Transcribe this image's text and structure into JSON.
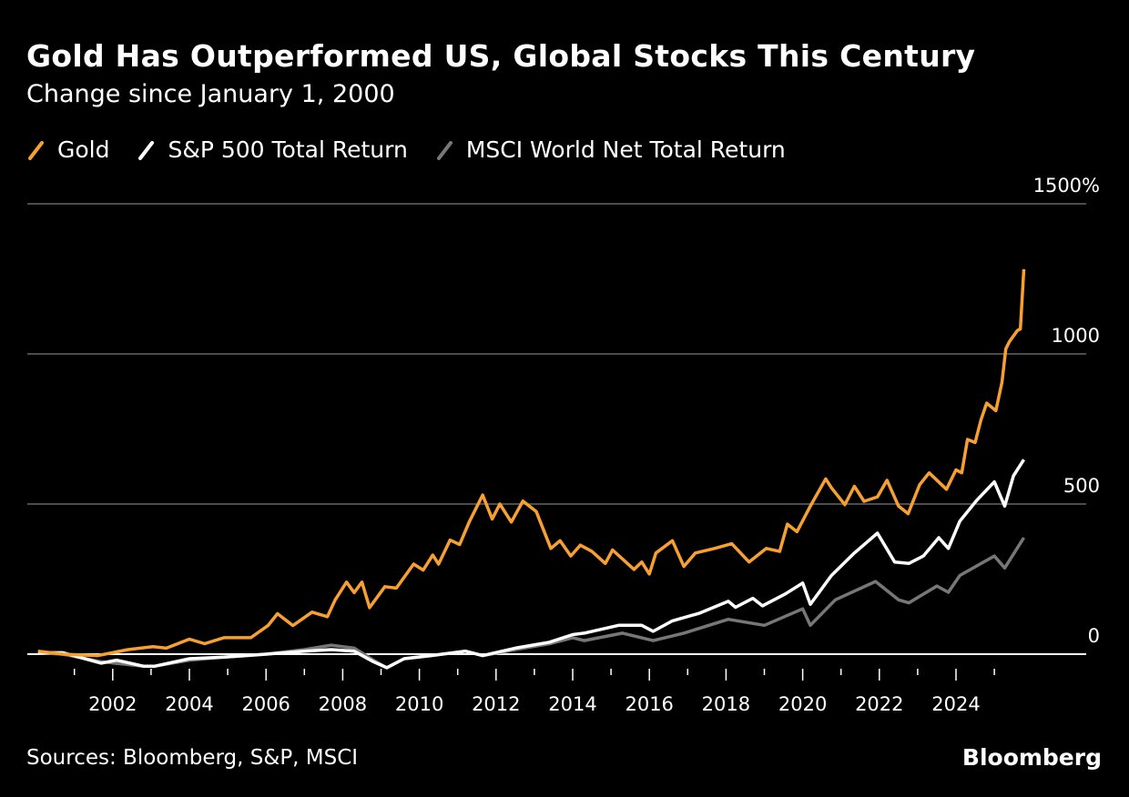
{
  "title": "Gold Has Outperformed US, Global Stocks This Century",
  "subtitle": "Change since January 1, 2000",
  "source": "Sources: Bloomberg, S&P, MSCI",
  "logo": "Bloomberg",
  "chart_data": {
    "type": "line",
    "title": "Gold Has Outperformed US, Global Stocks This Century",
    "subtitle": "Change since January 1, 2000",
    "xlabel": "",
    "ylabel": "",
    "xlim": [
      2000,
      2025.8
    ],
    "ylim": [
      0,
      1500
    ],
    "y_unit": "%",
    "y_ticks": [
      0,
      500,
      1000,
      1500
    ],
    "y_tick_labels": [
      "0",
      "500",
      "1000",
      "1500%"
    ],
    "x_ticks": [
      2002,
      2004,
      2006,
      2008,
      2010,
      2012,
      2014,
      2016,
      2018,
      2020,
      2022,
      2024
    ],
    "x_tick_labels": [
      "2002",
      "2004",
      "2006",
      "2008",
      "2010",
      "2012",
      "2014",
      "2016",
      "2018",
      "2020",
      "2022",
      "2024"
    ],
    "grid": true,
    "legend_position": "top-left",
    "series": [
      {
        "name": "Gold",
        "color": "#f7a031",
        "x": [
          2000.05,
          2000.7,
          2001.6,
          2002.4,
          2003.05,
          2003.4,
          2004.0,
          2004.4,
          2004.9,
          2005.6,
          2006.05,
          2006.3,
          2006.7,
          2007.2,
          2007.6,
          2007.8,
          2008.1,
          2008.3,
          2008.5,
          2008.7,
          2009.1,
          2009.4,
          2009.85,
          2010.1,
          2010.35,
          2010.5,
          2010.8,
          2011.05,
          2011.3,
          2011.65,
          2011.9,
          2012.1,
          2012.4,
          2012.7,
          2013.05,
          2013.43,
          2013.67,
          2013.95,
          2014.2,
          2014.5,
          2014.85,
          2015.04,
          2015.6,
          2015.8,
          2016.0,
          2016.17,
          2016.6,
          2016.9,
          2017.2,
          2017.7,
          2018.15,
          2018.6,
          2019.05,
          2019.4,
          2019.6,
          2019.85,
          2020.2,
          2020.6,
          2020.75,
          2021.1,
          2021.35,
          2021.6,
          2021.95,
          2022.2,
          2022.5,
          2022.75,
          2023.05,
          2023.3,
          2023.75,
          2024.0,
          2024.15,
          2024.3,
          2024.5,
          2024.65,
          2024.8,
          2025.04,
          2025.2,
          2025.3,
          2025.4,
          2025.6,
          2025.68,
          2025.77
        ],
        "y": [
          10,
          0,
          -5,
          15,
          25,
          20,
          50,
          35,
          55,
          55,
          95,
          135,
          95,
          140,
          125,
          180,
          240,
          205,
          240,
          155,
          225,
          220,
          300,
          280,
          330,
          300,
          380,
          365,
          440,
          530,
          450,
          500,
          440,
          510,
          475,
          352,
          378,
          327,
          363,
          342,
          302,
          347,
          282,
          307,
          267,
          337,
          378,
          292,
          337,
          352,
          368,
          307,
          352,
          342,
          433,
          408,
          493,
          584,
          554,
          498,
          559,
          509,
          524,
          579,
          493,
          468,
          564,
          604,
          549,
          614,
          604,
          715,
          705,
          780,
          836,
          811,
          906,
          1017,
          1042,
          1078,
          1083,
          1282
        ]
      },
      {
        "name": "S&P 500 Total Return",
        "color": "#ffffff",
        "x": [
          2000.05,
          2000.7,
          2001.7,
          2002.1,
          2002.8,
          2003.1,
          2004.0,
          2004.9,
          2006.0,
          2007.0,
          2007.7,
          2008.3,
          2008.8,
          2009.15,
          2009.6,
          2010.3,
          2011.2,
          2011.65,
          2012.5,
          2013.4,
          2014.0,
          2014.3,
          2015.2,
          2015.8,
          2016.1,
          2016.6,
          2017.3,
          2018.06,
          2018.25,
          2018.7,
          2018.95,
          2019.55,
          2020.0,
          2020.2,
          2020.75,
          2021.35,
          2021.95,
          2022.4,
          2022.77,
          2023.15,
          2023.55,
          2023.8,
          2024.1,
          2024.55,
          2025.0,
          2025.27,
          2025.5,
          2025.77
        ],
        "y": [
          5,
          5,
          -30,
          -20,
          -40,
          -40,
          -15,
          -10,
          0,
          10,
          15,
          10,
          -25,
          -45,
          -15,
          -5,
          10,
          -5,
          20,
          40,
          65,
          70,
          96,
          96,
          76,
          111,
          136,
          176,
          156,
          186,
          161,
          201,
          237,
          166,
          262,
          337,
          403,
          307,
          302,
          327,
          388,
          352,
          443,
          514,
          574,
          493,
          594,
          648
        ]
      },
      {
        "name": "MSCI World Net Total Return",
        "color": "#777777",
        "x": [
          2000.05,
          2000.7,
          2001.7,
          2002.8,
          2003.1,
          2004.0,
          2004.9,
          2006.0,
          2007.0,
          2007.7,
          2008.3,
          2008.8,
          2009.15,
          2009.6,
          2010.3,
          2011.2,
          2011.65,
          2012.5,
          2013.4,
          2014.0,
          2014.3,
          2015.3,
          2016.1,
          2016.9,
          2018.06,
          2019.0,
          2020.0,
          2020.2,
          2020.85,
          2021.9,
          2022.5,
          2022.77,
          2023.5,
          2023.8,
          2024.1,
          2025.0,
          2025.27,
          2025.77
        ],
        "y": [
          5,
          0,
          -25,
          -40,
          -40,
          -20,
          -10,
          0,
          15,
          30,
          20,
          -20,
          -45,
          -15,
          -5,
          10,
          -5,
          15,
          35,
          55,
          45,
          70,
          45,
          70,
          116,
          96,
          151,
          96,
          181,
          242,
          181,
          171,
          227,
          206,
          262,
          327,
          287,
          388
        ]
      }
    ]
  }
}
